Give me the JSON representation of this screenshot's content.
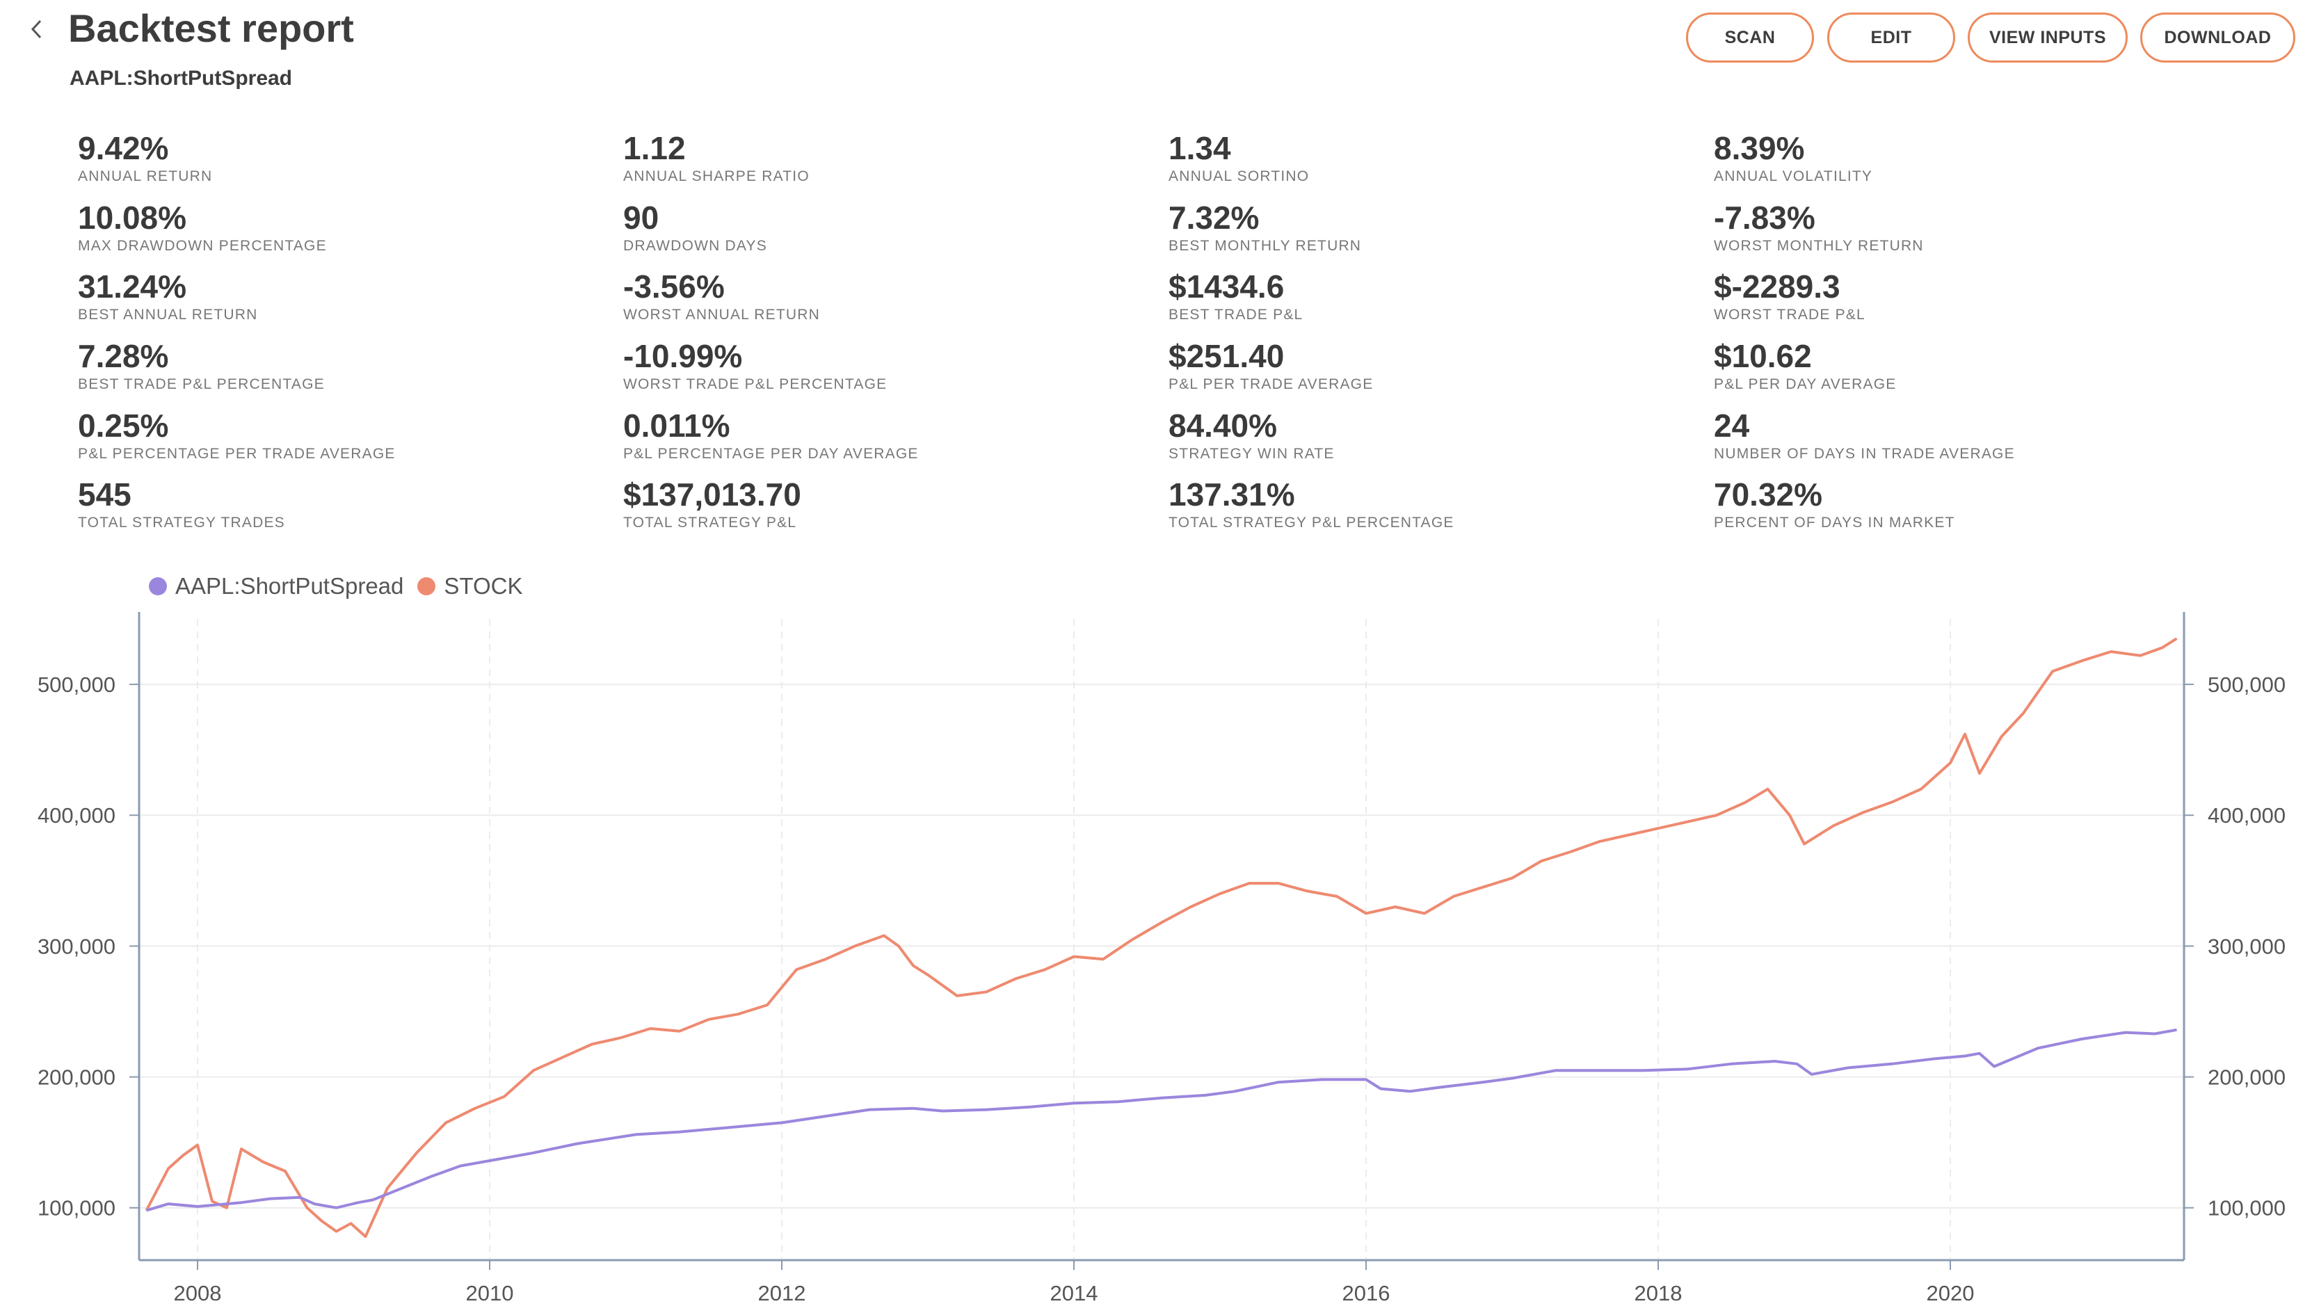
{
  "header": {
    "title": "Backtest report",
    "subtitle": "AAPL:ShortPutSpread",
    "buttons": {
      "scan": "SCAN",
      "edit": "EDIT",
      "view_inputs": "VIEW INPUTS",
      "download": "DOWNLOAD"
    }
  },
  "colors": {
    "accent": "#ee8a5c",
    "strategy": "#9b86dd",
    "stock": "#ee8a70"
  },
  "metrics": [
    [
      {
        "value": "9.42%",
        "label": "ANNUAL RETURN"
      },
      {
        "value": "1.12",
        "label": "ANNUAL SHARPE RATIO"
      },
      {
        "value": "1.34",
        "label": "ANNUAL SORTINO"
      },
      {
        "value": "8.39%",
        "label": "ANNUAL VOLATILITY"
      }
    ],
    [
      {
        "value": "10.08%",
        "label": "MAX DRAWDOWN PERCENTAGE"
      },
      {
        "value": "90",
        "label": "DRAWDOWN DAYS"
      },
      {
        "value": "7.32%",
        "label": "BEST MONTHLY RETURN"
      },
      {
        "value": "-7.83%",
        "label": "WORST MONTHLY RETURN"
      }
    ],
    [
      {
        "value": "31.24%",
        "label": "BEST ANNUAL RETURN"
      },
      {
        "value": "-3.56%",
        "label": "WORST ANNUAL RETURN"
      },
      {
        "value": "$1434.6",
        "label": "BEST TRADE P&L"
      },
      {
        "value": "$-2289.3",
        "label": "WORST TRADE P&L"
      }
    ],
    [
      {
        "value": "7.28%",
        "label": "BEST TRADE P&L PERCENTAGE"
      },
      {
        "value": "-10.99%",
        "label": "WORST TRADE P&L PERCENTAGE"
      },
      {
        "value": "$251.40",
        "label": "P&L PER TRADE AVERAGE"
      },
      {
        "value": "$10.62",
        "label": "P&L PER DAY AVERAGE"
      }
    ],
    [
      {
        "value": "0.25%",
        "label": "P&L PERCENTAGE PER TRADE AVERAGE"
      },
      {
        "value": "0.011%",
        "label": "P&L PERCENTAGE PER DAY AVERAGE"
      },
      {
        "value": "84.40%",
        "label": "STRATEGY WIN RATE"
      },
      {
        "value": "24",
        "label": "NUMBER OF DAYS IN TRADE AVERAGE"
      }
    ],
    [
      {
        "value": "545",
        "label": "TOTAL STRATEGY TRADES"
      },
      {
        "value": "$137,013.70",
        "label": "TOTAL STRATEGY P&L"
      },
      {
        "value": "137.31%",
        "label": "TOTAL STRATEGY P&L PERCENTAGE"
      },
      {
        "value": "70.32%",
        "label": "PERCENT OF DAYS IN MARKET"
      }
    ]
  ],
  "chart_data": {
    "type": "line",
    "legend_position": "top-left",
    "grid": true,
    "xlim": [
      2007.6,
      2021.6
    ],
    "ylim": [
      60000,
      550000
    ],
    "x_ticks": [
      2008,
      2010,
      2012,
      2014,
      2016,
      2018,
      2020
    ],
    "x_tick_labels": [
      "2008",
      "2010",
      "2012",
      "2014",
      "2016",
      "2018",
      "2020"
    ],
    "y_ticks": [
      100000,
      200000,
      300000,
      400000,
      500000
    ],
    "y_tick_labels": [
      "100,000",
      "200,000",
      "300,000",
      "400,000",
      "500,000"
    ],
    "series": [
      {
        "name": "AAPL:ShortPutSpread",
        "color": "#9b86dd",
        "x": [
          2007.65,
          2007.8,
          2008.0,
          2008.3,
          2008.5,
          2008.7,
          2008.8,
          2008.95,
          2009.1,
          2009.2,
          2009.4,
          2009.6,
          2009.8,
          2010.0,
          2010.3,
          2010.6,
          2011.0,
          2011.3,
          2011.6,
          2012.0,
          2012.3,
          2012.6,
          2012.9,
          2013.1,
          2013.4,
          2013.7,
          2014.0,
          2014.3,
          2014.6,
          2014.9,
          2015.1,
          2015.4,
          2015.7,
          2016.0,
          2016.1,
          2016.3,
          2016.5,
          2016.8,
          2017.0,
          2017.3,
          2017.6,
          2017.9,
          2018.2,
          2018.5,
          2018.8,
          2018.95,
          2019.05,
          2019.3,
          2019.6,
          2019.9,
          2020.1,
          2020.2,
          2020.3,
          2020.6,
          2020.9,
          2021.2,
          2021.4,
          2021.55
        ],
        "y": [
          98000,
          103000,
          101000,
          104000,
          107000,
          108000,
          103000,
          100000,
          104000,
          106000,
          115000,
          124000,
          132000,
          136000,
          142000,
          149000,
          156000,
          158000,
          161000,
          165000,
          170000,
          175000,
          176000,
          174000,
          175000,
          177000,
          180000,
          181000,
          184000,
          186000,
          189000,
          196000,
          198000,
          198000,
          191000,
          189000,
          192000,
          196000,
          199000,
          205000,
          205000,
          205000,
          206000,
          210000,
          212000,
          210000,
          202000,
          207000,
          210000,
          214000,
          216000,
          218000,
          208000,
          222000,
          229000,
          234000,
          233000,
          236000
        ]
      },
      {
        "name": "STOCK",
        "color": "#ee8a70",
        "x": [
          2007.65,
          2007.8,
          2007.9,
          2008.0,
          2008.1,
          2008.2,
          2008.3,
          2008.45,
          2008.6,
          2008.75,
          2008.85,
          2008.95,
          2009.05,
          2009.15,
          2009.3,
          2009.5,
          2009.7,
          2009.9,
          2010.1,
          2010.3,
          2010.5,
          2010.7,
          2010.9,
          2011.1,
          2011.3,
          2011.5,
          2011.7,
          2011.9,
          2012.1,
          2012.3,
          2012.5,
          2012.7,
          2012.8,
          2012.9,
          2013.0,
          2013.2,
          2013.4,
          2013.6,
          2013.8,
          2014.0,
          2014.2,
          2014.4,
          2014.6,
          2014.8,
          2015.0,
          2015.2,
          2015.4,
          2015.6,
          2015.8,
          2016.0,
          2016.2,
          2016.4,
          2016.6,
          2016.8,
          2017.0,
          2017.2,
          2017.4,
          2017.6,
          2017.8,
          2018.0,
          2018.2,
          2018.4,
          2018.6,
          2018.75,
          2018.9,
          2019.0,
          2019.2,
          2019.4,
          2019.6,
          2019.8,
          2020.0,
          2020.1,
          2020.2,
          2020.35,
          2020.5,
          2020.7,
          2020.9,
          2021.1,
          2021.3,
          2021.45,
          2021.55
        ],
        "y": [
          98000,
          130000,
          140000,
          148000,
          105000,
          100000,
          145000,
          135000,
          128000,
          100000,
          90000,
          82000,
          88000,
          78000,
          115000,
          142000,
          165000,
          176000,
          185000,
          205000,
          215000,
          225000,
          230000,
          237000,
          235000,
          244000,
          248000,
          255000,
          282000,
          290000,
          300000,
          308000,
          300000,
          285000,
          278000,
          262000,
          265000,
          275000,
          282000,
          292000,
          290000,
          305000,
          318000,
          330000,
          340000,
          348000,
          348000,
          342000,
          338000,
          325000,
          330000,
          325000,
          338000,
          345000,
          352000,
          365000,
          372000,
          380000,
          385000,
          390000,
          395000,
          400000,
          410000,
          420000,
          400000,
          378000,
          392000,
          402000,
          410000,
          420000,
          440000,
          462000,
          432000,
          460000,
          478000,
          510000,
          518000,
          525000,
          522000,
          528000,
          535000
        ]
      }
    ]
  }
}
